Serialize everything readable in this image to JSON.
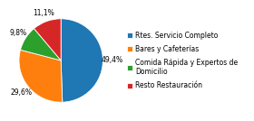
{
  "chart_data": {
    "type": "pie",
    "categories": [
      "Rtes. Servicio Completo",
      "Bares y Cafeterías",
      "Comida Rápida y Expertos de\nDomicilio",
      "Resto Restauración"
    ],
    "values": [
      49.4,
      29.6,
      9.8,
      11.1
    ],
    "value_labels": [
      "49,4%",
      "29,6%",
      "9,8%",
      "11,1%"
    ],
    "legend": "center left"
  }
}
